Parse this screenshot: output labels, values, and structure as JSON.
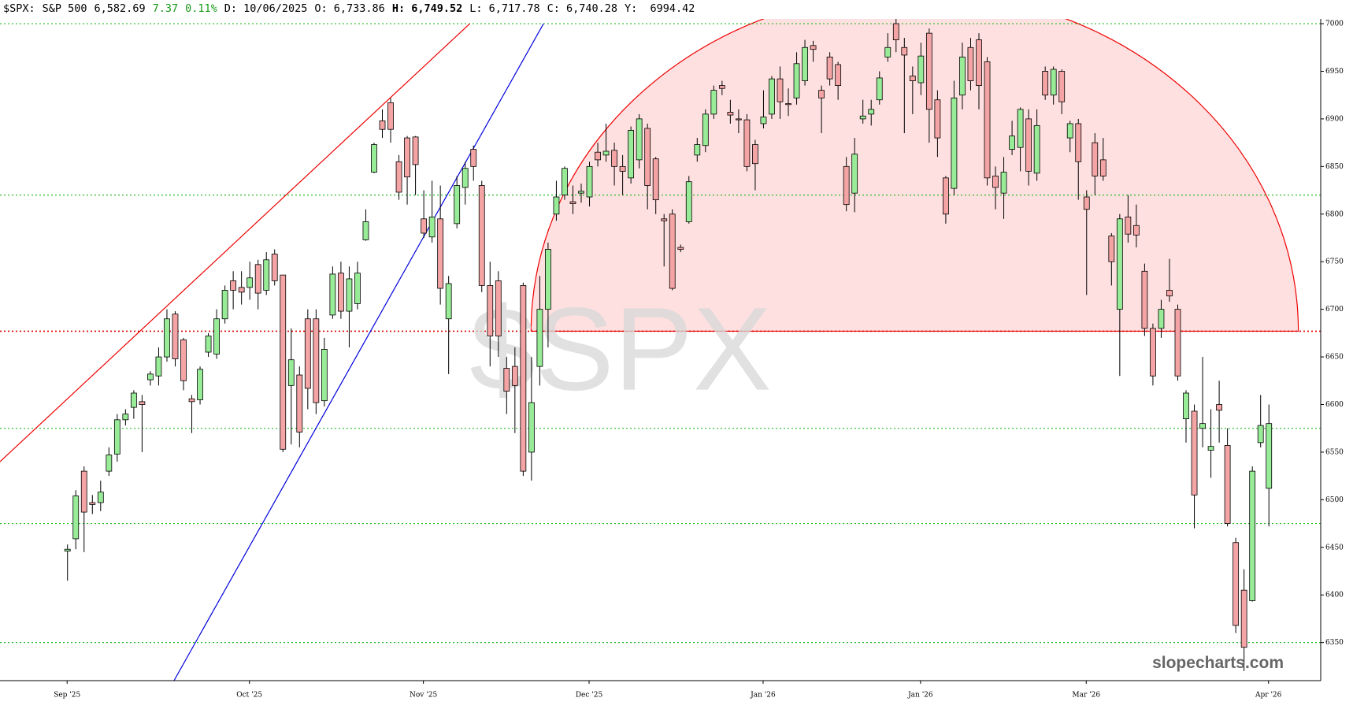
{
  "chart_data": {
    "type": "candlestick",
    "header": [
      {
        "text": "$SPX:",
        "color": "#000",
        "bold": false
      },
      {
        "text": "S&P 500",
        "color": "#000",
        "bold": false
      },
      {
        "text": "6,582.69",
        "color": "#000",
        "bold": false
      },
      {
        "text": "7.37",
        "color": "#1a9a1a",
        "bold": false
      },
      {
        "text": "0.11%",
        "color": "#1a9a1a",
        "bold": false
      },
      {
        "text": "D: 10/06/2025",
        "color": "#000",
        "bold": false
      },
      {
        "text": "O: 6,733.86",
        "color": "#000",
        "bold": false
      },
      {
        "text": "H: 6,749.52",
        "color": "#000",
        "bold": true
      },
      {
        "text": "L: 6,717.78",
        "color": "#000",
        "bold": false
      },
      {
        "text": "C: 6,740.28",
        "color": "#000",
        "bold": false
      },
      {
        "text": "Y:  6994.42",
        "color": "#000",
        "bold": false
      }
    ],
    "watermark": "$SPX",
    "brand": "slopecharts.com",
    "up_color": "#98ec98",
    "down_color": "#f4a4a4",
    "ylim": [
      6310,
      7005
    ],
    "yticks": [
      6350,
      6400,
      6450,
      6500,
      6550,
      6600,
      6650,
      6700,
      6750,
      6800,
      6850,
      6900,
      6950,
      7000
    ],
    "xlim": [
      -8.1,
      151.3
    ],
    "xticks": [
      {
        "value": 0,
        "label": "Sep '25"
      },
      {
        "value": 22,
        "label": "Oct '25"
      },
      {
        "value": 43,
        "label": "Nov '25"
      },
      {
        "value": 63,
        "label": "Dec '25"
      },
      {
        "value": 84,
        "label": "Jan '26"
      },
      {
        "value": 103,
        "label": "Jan '26"
      },
      {
        "value": 123,
        "label": "Mar '26"
      },
      {
        "value": 145,
        "label": "Apr '26"
      }
    ],
    "hlines": [
      {
        "value": 7000,
        "color": "#22bb22"
      },
      {
        "value": 6820,
        "color": "#22bb22"
      },
      {
        "value": 6677,
        "color": "#dd0000"
      },
      {
        "value": 6575,
        "color": "#22bb22"
      },
      {
        "value": 6475,
        "color": "#22bb22"
      },
      {
        "value": 6350,
        "color": "#22bb22"
      }
    ],
    "trendlines": [
      {
        "x": [
          -8.1,
          48.6
        ],
        "y": [
          6540,
          7000
        ],
        "color": "#ee0000"
      },
      {
        "x": [
          12.9,
          57.5
        ],
        "y": [
          6310,
          7000
        ],
        "color": "#0000dd"
      }
    ],
    "arc": {
      "x": [
        56,
        148.6
      ],
      "base": 6677,
      "peak": 7034,
      "color": "#ee0000",
      "fill": "#ffe0e0"
    },
    "ohlc": [
      [
        6446,
        6453,
        6415,
        6448
      ],
      [
        6459,
        6510,
        6448,
        6504
      ],
      [
        6530,
        6535,
        6445,
        6487
      ],
      [
        6497,
        6505,
        6485,
        6495
      ],
      [
        6497,
        6520,
        6488,
        6508
      ],
      [
        6530,
        6555,
        6525,
        6547
      ],
      [
        6548,
        6590,
        6540,
        6584
      ],
      [
        6584,
        6595,
        6578,
        6590
      ],
      [
        6597,
        6615,
        6585,
        6612
      ],
      [
        6603,
        6610,
        6550,
        6600
      ],
      [
        6626,
        6635,
        6620,
        6632
      ],
      [
        6630,
        6660,
        6620,
        6650
      ],
      [
        6650,
        6700,
        6645,
        6690
      ],
      [
        6695,
        6698,
        6640,
        6648
      ],
      [
        6668,
        6670,
        6615,
        6625
      ],
      [
        6606,
        6610,
        6570,
        6603
      ],
      [
        6605,
        6640,
        6600,
        6637
      ],
      [
        6655,
        6675,
        6650,
        6672
      ],
      [
        6653,
        6700,
        6648,
        6690
      ],
      [
        6690,
        6725,
        6685,
        6720
      ],
      [
        6730,
        6740,
        6700,
        6720
      ],
      [
        6723,
        6740,
        6705,
        6718
      ],
      [
        6723,
        6750,
        6710,
        6733
      ],
      [
        6747,
        6752,
        6700,
        6717
      ],
      [
        6720,
        6760,
        6715,
        6752
      ],
      [
        6758,
        6763,
        6725,
        6730
      ],
      [
        6736,
        6736,
        6550,
        6553
      ],
      [
        6620,
        6680,
        6558,
        6647
      ],
      [
        6631,
        6640,
        6555,
        6571
      ],
      [
        6690,
        6700,
        6595,
        6617
      ],
      [
        6690,
        6700,
        6590,
        6602
      ],
      [
        6604,
        6670,
        6598,
        6658
      ],
      [
        6694,
        6745,
        6690,
        6737
      ],
      [
        6738,
        6750,
        6690,
        6698
      ],
      [
        6698,
        6745,
        6660,
        6732
      ],
      [
        6706,
        6750,
        6700,
        6738
      ],
      [
        6773,
        6805,
        6772,
        6792
      ],
      [
        6844,
        6875,
        6843,
        6873
      ],
      [
        6898,
        6910,
        6880,
        6889
      ],
      [
        6917,
        6922,
        6875,
        6889
      ],
      [
        6855,
        6862,
        6815,
        6823
      ],
      [
        6880,
        6882,
        6810,
        6839
      ],
      [
        6881,
        6882,
        6820,
        6852
      ],
      [
        6795,
        6825,
        6775,
        6780
      ],
      [
        6776,
        6835,
        6770,
        6797
      ],
      [
        6795,
        6830,
        6705,
        6722
      ],
      [
        6690,
        6735,
        6632,
        6727
      ],
      [
        6790,
        6840,
        6785,
        6830
      ],
      [
        6828,
        6855,
        6810,
        6848
      ],
      [
        6868,
        6872,
        6835,
        6850
      ],
      [
        6830,
        6835,
        6718,
        6725
      ],
      [
        6725,
        6750,
        6640,
        6672
      ],
      [
        6730,
        6740,
        6650,
        6672
      ],
      [
        6638,
        6650,
        6590,
        6614
      ],
      [
        6640,
        6660,
        6570,
        6620
      ],
      [
        6725,
        6728,
        6525,
        6530
      ],
      [
        6550,
        6650,
        6520,
        6602
      ],
      [
        6640,
        6735,
        6620,
        6700
      ],
      [
        6700,
        6770,
        6660,
        6763
      ],
      [
        6800,
        6835,
        6793,
        6818
      ],
      [
        6820,
        6850,
        6815,
        6848
      ],
      [
        6813,
        6830,
        6800,
        6811
      ],
      [
        6822,
        6832,
        6812,
        6824
      ],
      [
        6818,
        6855,
        6808,
        6850
      ],
      [
        6865,
        6875,
        6850,
        6857
      ],
      [
        6862,
        6895,
        6855,
        6866
      ],
      [
        6867,
        6875,
        6830,
        6850
      ],
      [
        6850,
        6862,
        6820,
        6845
      ],
      [
        6838,
        6892,
        6832,
        6888
      ],
      [
        6857,
        6905,
        6848,
        6900
      ],
      [
        6890,
        6895,
        6805,
        6830
      ],
      [
        6858,
        6860,
        6800,
        6815
      ],
      [
        6795,
        6800,
        6745,
        6793
      ],
      [
        6800,
        6805,
        6720,
        6722
      ],
      [
        6765,
        6768,
        6760,
        6763
      ],
      [
        6792,
        6840,
        6790,
        6834
      ],
      [
        6862,
        6880,
        6855,
        6873
      ],
      [
        6872,
        6910,
        6865,
        6905
      ],
      [
        6905,
        6935,
        6900,
        6930
      ],
      [
        6935,
        6940,
        6925,
        6932
      ],
      [
        6907,
        6920,
        6895,
        6904
      ],
      [
        6900,
        6910,
        6885,
        6899
      ],
      [
        6899,
        6905,
        6845,
        6850
      ],
      [
        6873,
        6878,
        6825,
        6853
      ],
      [
        6895,
        6930,
        6890,
        6902
      ],
      [
        6905,
        6945,
        6900,
        6942
      ],
      [
        6942,
        6955,
        6900,
        6918
      ],
      [
        6916,
        6932,
        6903,
        6915
      ],
      [
        6922,
        6970,
        6915,
        6958
      ],
      [
        6940,
        6983,
        6935,
        6975
      ],
      [
        6977,
        6982,
        6960,
        6973
      ],
      [
        6930,
        6935,
        6885,
        6922
      ],
      [
        6965,
        6970,
        6935,
        6942
      ],
      [
        6957,
        6960,
        6920,
        6935
      ],
      [
        6850,
        6860,
        6803,
        6810
      ],
      [
        6822,
        6880,
        6802,
        6863
      ],
      [
        6900,
        6920,
        6895,
        6903
      ],
      [
        6905,
        6920,
        6893,
        6910
      ],
      [
        6920,
        6950,
        6915,
        6943
      ],
      [
        6965,
        6990,
        6960,
        6975
      ],
      [
        7000,
        7010,
        6970,
        6983
      ],
      [
        6975,
        6985,
        6885,
        6967
      ],
      [
        6945,
        6955,
        6905,
        6940
      ],
      [
        6938,
        6980,
        6925,
        6966
      ],
      [
        6990,
        6995,
        6875,
        6910
      ],
      [
        6920,
        6930,
        6860,
        6880
      ],
      [
        6838,
        6840,
        6790,
        6800
      ],
      [
        6827,
        6940,
        6820,
        6922
      ],
      [
        6925,
        6980,
        6910,
        6965
      ],
      [
        6975,
        6985,
        6930,
        6940
      ],
      [
        6983,
        6990,
        6910,
        6935
      ],
      [
        6960,
        6965,
        6830,
        6838
      ],
      [
        6840,
        6850,
        6805,
        6828
      ],
      [
        6822,
        6860,
        6795,
        6844
      ],
      [
        6868,
        6898,
        6862,
        6882
      ],
      [
        6870,
        6912,
        6845,
        6910
      ],
      [
        6900,
        6910,
        6830,
        6845
      ],
      [
        6843,
        6910,
        6835,
        6893
      ],
      [
        6950,
        6955,
        6920,
        6925
      ],
      [
        6925,
        6955,
        6915,
        6952
      ],
      [
        6950,
        6952,
        6905,
        6918
      ],
      [
        6880,
        6898,
        6865,
        6895
      ],
      [
        6895,
        6900,
        6815,
        6855
      ],
      [
        6818,
        6825,
        6715,
        6805
      ],
      [
        6875,
        6885,
        6820,
        6840
      ],
      [
        6857,
        6880,
        6835,
        6840
      ],
      [
        6777,
        6780,
        6725,
        6750
      ],
      [
        6700,
        6800,
        6630,
        6795
      ],
      [
        6797,
        6820,
        6770,
        6779
      ],
      [
        6788,
        6810,
        6765,
        6778
      ],
      [
        6740,
        6748,
        6672,
        6680
      ],
      [
        6680,
        6685,
        6620,
        6630
      ],
      [
        6680,
        6710,
        6670,
        6700
      ],
      [
        6720,
        6753,
        6708,
        6714
      ],
      [
        6700,
        6705,
        6625,
        6630
      ],
      [
        6585,
        6615,
        6560,
        6612
      ],
      [
        6593,
        6600,
        6470,
        6505
      ],
      [
        6575,
        6650,
        6555,
        6580
      ],
      [
        6552,
        6595,
        6523,
        6556
      ],
      [
        6600,
        6625,
        6560,
        6594
      ],
      [
        6557,
        6575,
        6472,
        6475
      ],
      [
        6455,
        6460,
        6360,
        6368
      ],
      [
        6405,
        6427,
        6320,
        6345
      ],
      [
        6394,
        6535,
        6393,
        6530
      ],
      [
        6560,
        6610,
        6555,
        6578
      ],
      [
        6512,
        6600,
        6472,
        6580
      ]
    ]
  }
}
